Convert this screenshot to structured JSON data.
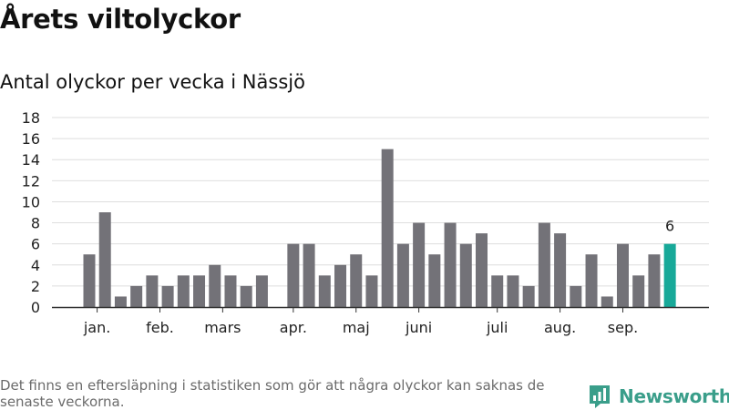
{
  "title": "Årets viltolyckor",
  "subtitle": "Antal olyckor per vecka i Nässjö",
  "footnote": "Det finns en eftersläpning i statistiken som gör att några olyckor kan saknas de senaste veckorna.",
  "brand": {
    "name": "Newsworthy",
    "icon": "newsworthy-logo-icon",
    "color": "#3a9e8a"
  },
  "chart_data": {
    "type": "bar",
    "values": [
      5,
      9,
      1,
      2,
      3,
      2,
      3,
      3,
      4,
      3,
      2,
      3,
      null,
      6,
      6,
      3,
      4,
      5,
      3,
      15,
      6,
      8,
      5,
      8,
      6,
      7,
      3,
      3,
      2,
      8,
      7,
      2,
      5,
      1,
      6,
      3,
      5,
      6
    ],
    "month_labels": [
      {
        "label": "jan.",
        "week_index": 0.5
      },
      {
        "label": "feb.",
        "week_index": 4.5
      },
      {
        "label": "mars",
        "week_index": 8.5
      },
      {
        "label": "apr.",
        "week_index": 13.0
      },
      {
        "label": "maj",
        "week_index": 17.0
      },
      {
        "label": "juni",
        "week_index": 21.0
      },
      {
        "label": "juli",
        "week_index": 26.0
      },
      {
        "label": "aug.",
        "week_index": 30.0
      },
      {
        "label": "sep.",
        "week_index": 34.0
      }
    ],
    "yticks": [
      0,
      2,
      4,
      6,
      8,
      10,
      12,
      14,
      16,
      18
    ],
    "ylim": [
      0,
      18
    ],
    "highlight_index": 37,
    "highlight_label": "6",
    "bar_color": "#737278",
    "highlight_color": "#18a999",
    "grid": true
  }
}
